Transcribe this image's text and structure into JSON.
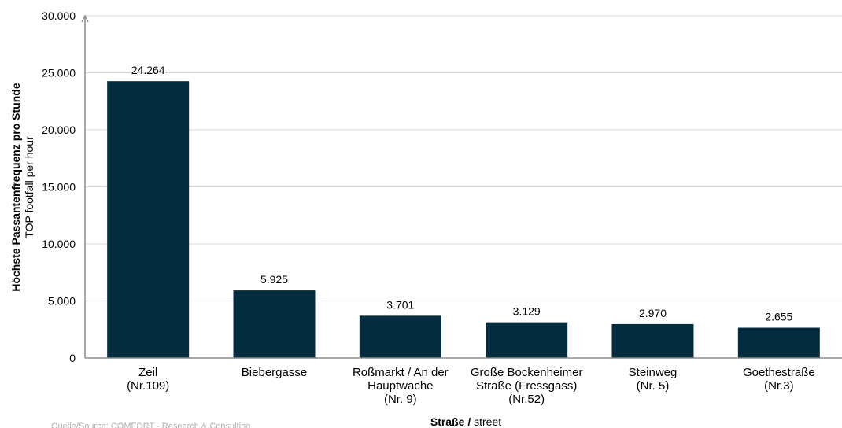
{
  "source_note": "Quelle/Source: COMFORT - Research & Consulting",
  "colors": {
    "bar": "#032d3f",
    "grid": "#d9d9d9",
    "axis": "#8c8c8c"
  },
  "chart_data": {
    "type": "bar",
    "categories": [
      [
        "Zeil",
        "(Nr.109)"
      ],
      [
        "Biebergasse"
      ],
      [
        "Roßmarkt / An der",
        "Hauptwache",
        "(Nr. 9)"
      ],
      [
        "Große Bockenheimer",
        "Straße (Fressgass)",
        "(Nr.52)"
      ],
      [
        "Steinweg",
        "(Nr. 5)"
      ],
      [
        "Goethestraße",
        "(Nr.3)"
      ]
    ],
    "values": [
      24264,
      5925,
      3701,
      3129,
      2970,
      2655
    ],
    "value_labels": [
      "24.264",
      "5.925",
      "3.701",
      "3.129",
      "2.970",
      "2.655"
    ],
    "ylim": [
      0,
      30000
    ],
    "yticks": [
      0,
      5000,
      10000,
      15000,
      20000,
      25000,
      30000
    ],
    "ytick_labels": [
      "0",
      "5.000",
      "10.000",
      "15.000",
      "20.000",
      "25.000",
      "30.000"
    ],
    "ylabel_bold": "Höchste Passantenfrequenz pro Stunde",
    "ylabel_normal": "TOP footfall per hour",
    "xlabel_bold": "Straße /",
    "xlabel_normal": " street",
    "grid": true
  }
}
